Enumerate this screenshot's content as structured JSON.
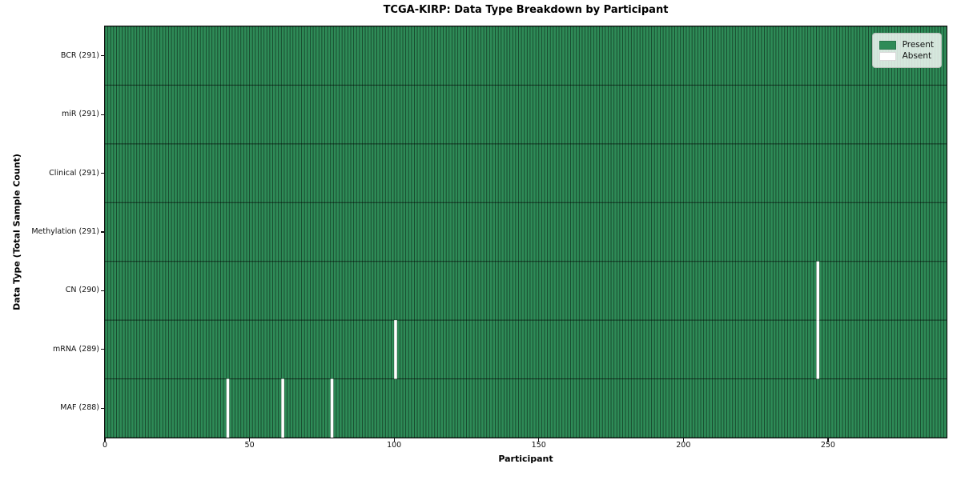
{
  "title": "TCGA-KIRP: Data Type Breakdown by Participant",
  "chart_data": {
    "type": "heatmap",
    "title": "TCGA-KIRP: Data Type Breakdown by Participant",
    "xlabel": "Participant",
    "ylabel": "Data Type (Total Sample Count)",
    "n_participants": 291,
    "x_range": [
      0,
      291
    ],
    "x_ticks": [
      0,
      50,
      100,
      150,
      200,
      250
    ],
    "grid": true,
    "legend": {
      "position": "upper-right",
      "entries": [
        {
          "label": "Present",
          "color": "#2e8b57"
        },
        {
          "label": "Absent",
          "color": "#ffffff"
        }
      ]
    },
    "colors": {
      "present": "#2e8b57",
      "absent": "#ffffff"
    },
    "rows": [
      {
        "label": "BCR (291)",
        "data_type": "BCR",
        "present_count": 291,
        "absent_participants": []
      },
      {
        "label": "miR (291)",
        "data_type": "miR",
        "present_count": 291,
        "absent_participants": []
      },
      {
        "label": "Clinical (291)",
        "data_type": "Clinical",
        "present_count": 291,
        "absent_participants": []
      },
      {
        "label": "Methylation (291)",
        "data_type": "Methylation",
        "present_count": 291,
        "absent_participants": []
      },
      {
        "label": "CN (290)",
        "data_type": "CN",
        "present_count": 290,
        "absent_participants": [
          246
        ]
      },
      {
        "label": "mRNA (289)",
        "data_type": "mRNA",
        "present_count": 289,
        "absent_participants": [
          100,
          246
        ]
      },
      {
        "label": "MAF (288)",
        "data_type": "MAF",
        "present_count": 288,
        "absent_participants": [
          42,
          61,
          78
        ]
      }
    ]
  }
}
